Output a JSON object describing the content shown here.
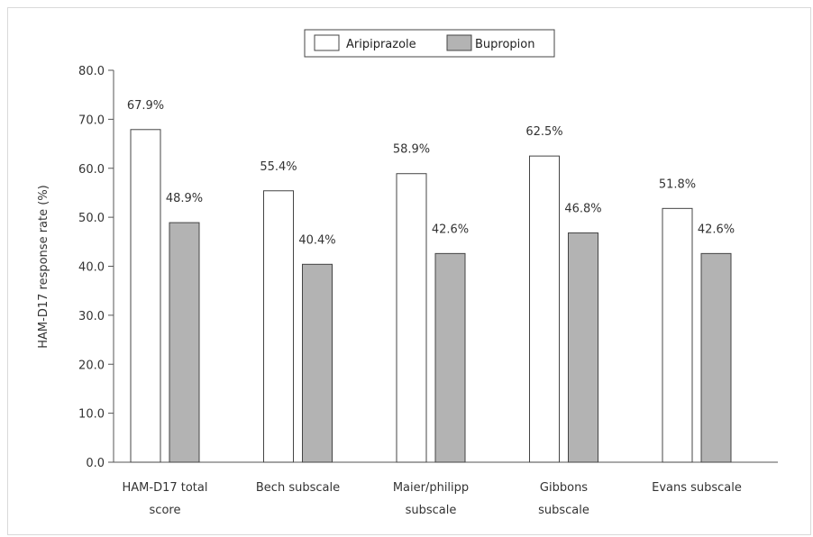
{
  "chart_data": {
    "type": "bar",
    "title": "",
    "xlabel": "",
    "ylabel": "HAM-D17 response rate (%)",
    "ylim": [
      0,
      80
    ],
    "yticks": [
      "0.0",
      "10.0",
      "20.0",
      "30.0",
      "40.0",
      "50.0",
      "60.0",
      "70.0",
      "80.0"
    ],
    "categories": [
      [
        "HAM-D17 total",
        "score"
      ],
      [
        "Bech subscale"
      ],
      [
        "Maier/philipp",
        "subscale"
      ],
      [
        "Gibbons",
        "subscale"
      ],
      [
        "Evans subscale"
      ]
    ],
    "series": [
      {
        "name": "Aripiprazole",
        "color": "#ffffff",
        "values": [
          67.9,
          55.4,
          58.9,
          62.5,
          51.8
        ],
        "labels": [
          "67.9%",
          "55.4%",
          "58.9%",
          "62.5%",
          "51.8%"
        ]
      },
      {
        "name": "Bupropion",
        "color": "#b3b3b3",
        "values": [
          48.9,
          40.4,
          42.6,
          46.8,
          42.6
        ],
        "labels": [
          "48.9%",
          "40.4%",
          "42.6%",
          "46.8%",
          "42.6%"
        ]
      }
    ],
    "grid": false,
    "legend_position": "top-center"
  }
}
